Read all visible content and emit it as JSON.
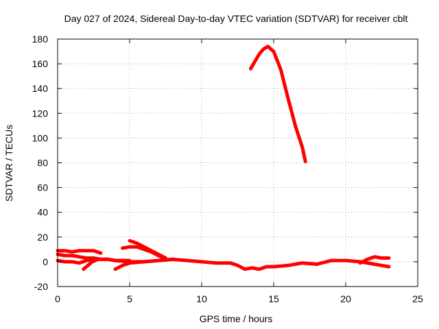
{
  "chart_data": {
    "type": "line",
    "title": "Day 027 of 2024, Sidereal Day-to-day VTEC variation (SDTVAR) for receiver cblt",
    "xlabel": "GPS time / hours",
    "ylabel": "SDTVAR / TECUs",
    "xlim": [
      0,
      25
    ],
    "ylim": [
      -20,
      180
    ],
    "xticks": [
      0,
      5,
      10,
      15,
      20,
      25
    ],
    "yticks": [
      -20,
      0,
      20,
      40,
      60,
      80,
      100,
      120,
      140,
      160,
      180
    ],
    "grid": true,
    "series_color": "#ff0000",
    "series": [
      {
        "name": "track-a",
        "x": [
          0.0,
          0.5,
          1.0,
          1.5,
          2.0,
          2.5,
          3.0
        ],
        "y": [
          9,
          9,
          8,
          9,
          9,
          9,
          7
        ]
      },
      {
        "name": "track-b",
        "x": [
          0.0,
          0.5,
          1.0,
          1.5,
          2.0,
          2.5,
          3.0,
          3.5,
          4.0,
          5.0,
          6.0,
          7.0,
          8.0
        ],
        "y": [
          6,
          5,
          5,
          4,
          3,
          3,
          2,
          2,
          1,
          0,
          0,
          1,
          2
        ]
      },
      {
        "name": "track-c",
        "x": [
          0.0,
          0.5,
          1.0,
          1.5,
          2.0,
          2.5,
          3.0,
          3.5,
          4.0,
          4.5,
          5.0
        ],
        "y": [
          1,
          0,
          0,
          -1,
          1,
          2,
          2,
          2,
          1,
          1,
          1
        ]
      },
      {
        "name": "track-d",
        "x": [
          1.8,
          2.1,
          2.4,
          2.8
        ],
        "y": [
          -6,
          -3,
          0,
          2
        ]
      },
      {
        "name": "track-e",
        "x": [
          4.0,
          4.5,
          5.0,
          6.0,
          7.0,
          8.0
        ],
        "y": [
          -6,
          -3,
          -1,
          0,
          1,
          2
        ]
      },
      {
        "name": "track-f",
        "x": [
          4.5,
          5.0,
          5.5,
          6.0,
          6.5,
          7.0,
          7.5
        ],
        "y": [
          11,
          12,
          12,
          10,
          8,
          5,
          2
        ]
      },
      {
        "name": "track-g",
        "x": [
          5.0,
          5.5,
          6.0,
          6.5,
          7.0,
          7.5
        ],
        "y": [
          17,
          15,
          12,
          9,
          6,
          3
        ]
      },
      {
        "name": "track-h",
        "x": [
          8.0,
          9.0,
          10.0,
          11.0,
          12.0,
          12.5,
          13.0,
          13.5,
          14.0,
          14.5,
          15.0,
          16.0,
          17.0,
          18.0,
          19.0,
          20.0,
          21.0,
          21.5
        ],
        "y": [
          2,
          1,
          0,
          -1,
          -1,
          -3,
          -6,
          -5,
          -6,
          -4,
          -4,
          -3,
          -1,
          -2,
          1,
          1,
          0,
          -1
        ]
      },
      {
        "name": "track-i",
        "x": [
          21.0,
          21.5,
          22.0,
          22.5,
          23.0
        ],
        "y": [
          -1,
          2,
          4,
          3,
          3
        ]
      },
      {
        "name": "track-j",
        "x": [
          21.5,
          22.0,
          22.5,
          23.0
        ],
        "y": [
          -1,
          -2,
          -3,
          -4
        ]
      },
      {
        "name": "track-k",
        "x": [
          13.4,
          13.7,
          14.0,
          14.3,
          14.6,
          15.0,
          15.5,
          16.0,
          16.5,
          17.0,
          17.2
        ],
        "y": [
          156,
          162,
          168,
          172,
          174,
          170,
          155,
          132,
          110,
          92,
          81
        ]
      }
    ]
  }
}
